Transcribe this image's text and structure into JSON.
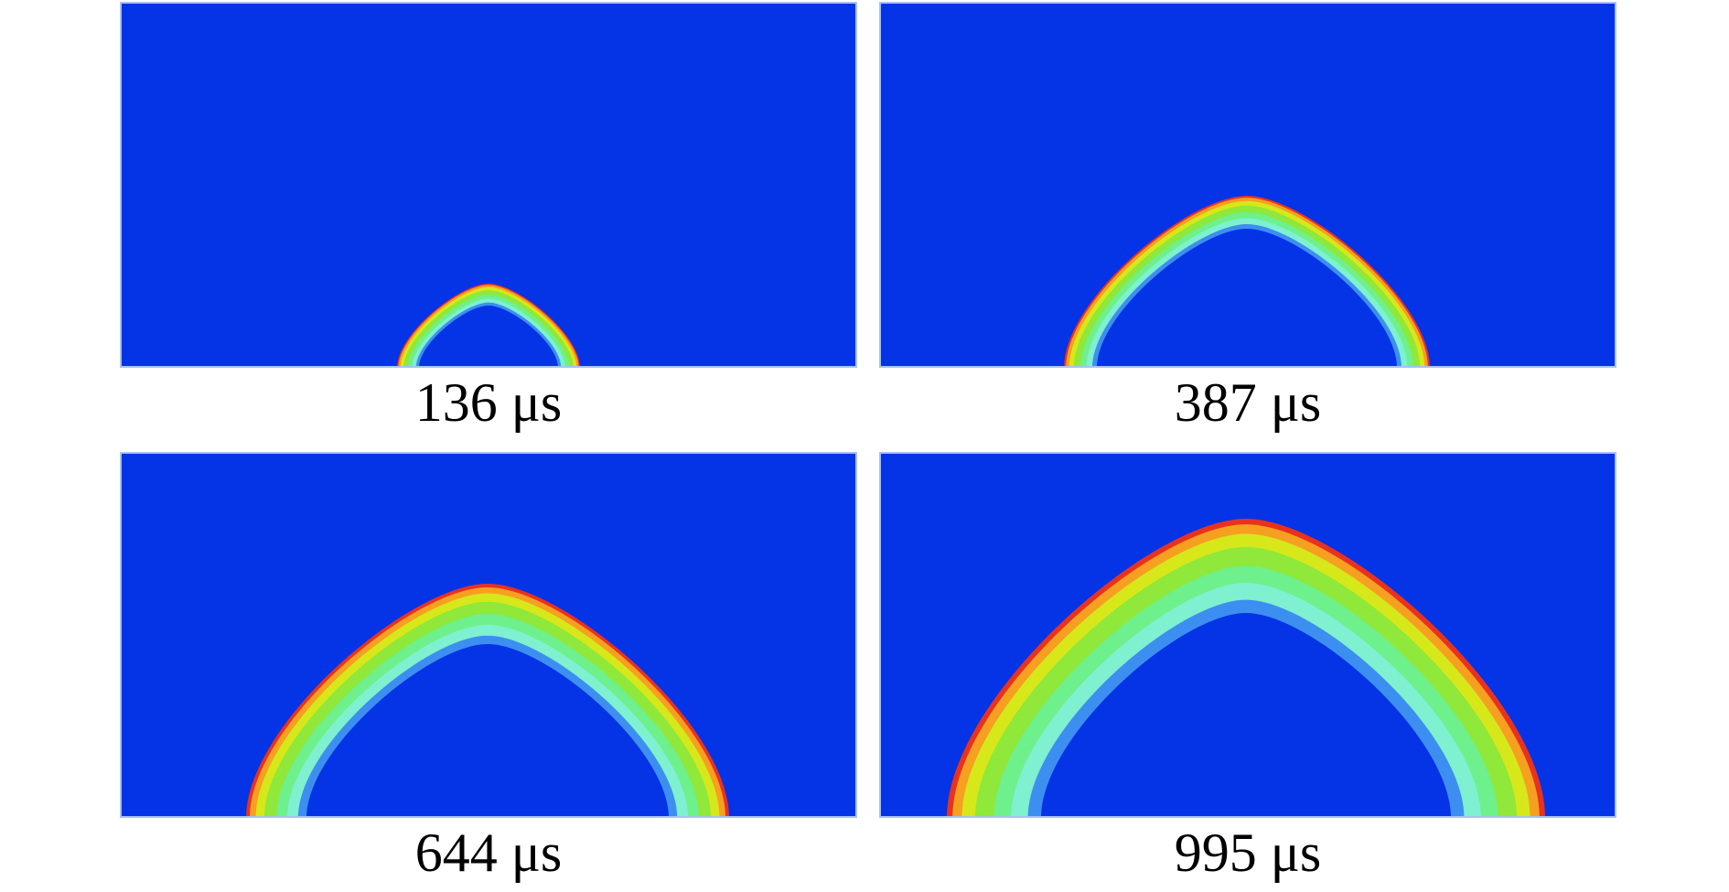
{
  "panels": [
    {
      "label": "136 μs"
    },
    {
      "label": "387 μs"
    },
    {
      "label": "644 μs"
    },
    {
      "label": "995 μs"
    }
  ]
}
